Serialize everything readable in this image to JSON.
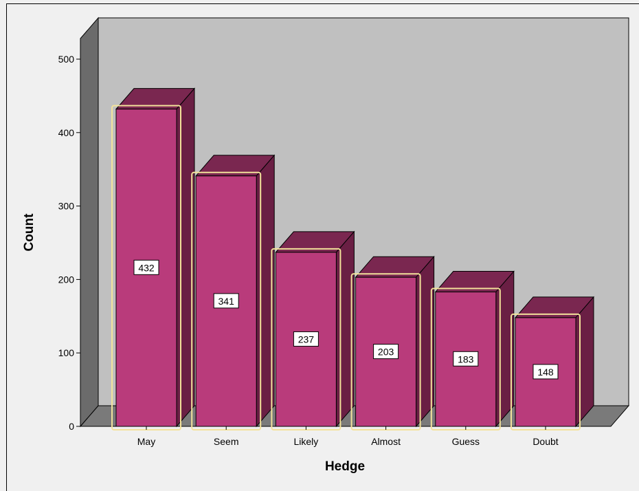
{
  "chart_data": {
    "type": "bar",
    "style": "3d",
    "categories": [
      "May",
      "Seem",
      "Likely",
      "Almost",
      "Guess",
      "Doubt"
    ],
    "values": [
      432,
      341,
      237,
      203,
      183,
      148
    ],
    "data_labels": [
      "432",
      "341",
      "237",
      "203",
      "183",
      "148"
    ],
    "xlabel": "Hedge",
    "ylabel": "Count",
    "ylim": [
      0,
      500
    ],
    "yticks": [
      "0",
      "100",
      "200",
      "300",
      "400",
      "500"
    ],
    "grid": false,
    "legend": "none",
    "colors": {
      "bar_front": "#b93b7b",
      "bar_top": "#7a2750",
      "bar_side": "#6a1f44",
      "bar_highlight": "#f3e29a",
      "back_wall": "#c0c0c0",
      "side_wall": "#6b6b6b",
      "floor": "#7a7a7a",
      "background": "#f0f0f0"
    }
  }
}
